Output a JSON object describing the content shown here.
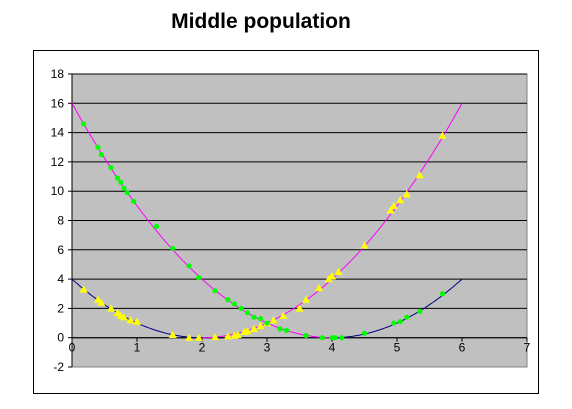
{
  "title": "Middle population",
  "chart_data": {
    "type": "scatter",
    "title": "Middle population",
    "xlabel": "",
    "ylabel": "",
    "xlim": [
      0,
      7
    ],
    "ylim": [
      -2,
      18
    ],
    "x_ticks": [
      0,
      1,
      2,
      3,
      4,
      5,
      6,
      7
    ],
    "y_ticks": [
      -2,
      0,
      2,
      4,
      6,
      8,
      10,
      12,
      14,
      16,
      18
    ],
    "grid": true,
    "legend": "none",
    "plot_background": "#c0c0c0",
    "series": [
      {
        "marker": "triangle",
        "color": "#ffff00",
        "points": [
          [
            0.18,
            3.3
          ],
          [
            0.4,
            2.6
          ],
          [
            0.45,
            2.4
          ],
          [
            0.6,
            2.0
          ],
          [
            0.7,
            1.7
          ],
          [
            0.75,
            1.5
          ],
          [
            0.8,
            1.4
          ],
          [
            0.9,
            1.2
          ],
          [
            1.0,
            1.1
          ],
          [
            1.55,
            0.2
          ],
          [
            1.8,
            0.0
          ],
          [
            1.95,
            0.0
          ],
          [
            2.2,
            0.05
          ],
          [
            2.4,
            0.1
          ],
          [
            2.5,
            0.15
          ],
          [
            2.55,
            0.2
          ],
          [
            2.65,
            0.4
          ],
          [
            2.7,
            0.45
          ],
          [
            2.8,
            0.6
          ],
          [
            2.9,
            0.8
          ],
          [
            3.0,
            1.0
          ],
          [
            3.1,
            1.2
          ],
          [
            3.25,
            1.5
          ],
          [
            3.5,
            2.0
          ],
          [
            3.6,
            2.6
          ],
          [
            3.8,
            3.4
          ],
          [
            3.95,
            4.0
          ],
          [
            4.0,
            4.2
          ],
          [
            4.1,
            4.5
          ],
          [
            4.5,
            6.3
          ],
          [
            4.9,
            8.7
          ],
          [
            4.95,
            9.0
          ],
          [
            5.05,
            9.4
          ],
          [
            5.15,
            9.8
          ],
          [
            5.35,
            11.1
          ],
          [
            5.7,
            13.8
          ]
        ]
      },
      {
        "marker": "circle",
        "color": "#00ff00",
        "points": [
          [
            0.18,
            14.6
          ],
          [
            0.4,
            13.0
          ],
          [
            0.45,
            12.5
          ],
          [
            0.6,
            11.6
          ],
          [
            0.7,
            10.9
          ],
          [
            0.75,
            10.6
          ],
          [
            0.8,
            10.2
          ],
          [
            0.85,
            9.9
          ],
          [
            0.95,
            9.3
          ],
          [
            1.3,
            7.6
          ],
          [
            1.55,
            6.1
          ],
          [
            1.8,
            4.9
          ],
          [
            1.95,
            4.1
          ],
          [
            2.2,
            3.2
          ],
          [
            2.4,
            2.6
          ],
          [
            2.5,
            2.3
          ],
          [
            2.6,
            2.0
          ],
          [
            2.7,
            1.7
          ],
          [
            2.8,
            1.4
          ],
          [
            2.9,
            1.3
          ],
          [
            3.0,
            1.0
          ],
          [
            3.2,
            0.6
          ],
          [
            3.3,
            0.5
          ],
          [
            3.6,
            0.15
          ],
          [
            3.85,
            0.0
          ],
          [
            4.0,
            0.0
          ],
          [
            4.05,
            0.0
          ],
          [
            4.15,
            0.0
          ],
          [
            4.5,
            0.3
          ],
          [
            4.95,
            1.0
          ],
          [
            5.05,
            1.1
          ],
          [
            5.15,
            1.4
          ],
          [
            5.35,
            1.8
          ],
          [
            5.7,
            3.0
          ]
        ]
      }
    ],
    "curves": [
      {
        "name": "",
        "color": "#ff00ff",
        "segments": [
          {
            "y_at_0": 16,
            "min_x": 4,
            "x_range": [
              0,
              4
            ]
          },
          {
            "y_at_0": 4,
            "min_x": 2,
            "x_range": [
              2,
              6
            ]
          }
        ]
      },
      {
        "name": "",
        "color": "#000080",
        "segments": [
          {
            "y_at_0": 4,
            "min_x": 2,
            "x_range": [
              0,
              2
            ]
          },
          {
            "y_at_0": 16,
            "min_x": 4,
            "x_range": [
              4,
              6
            ]
          }
        ]
      }
    ]
  }
}
